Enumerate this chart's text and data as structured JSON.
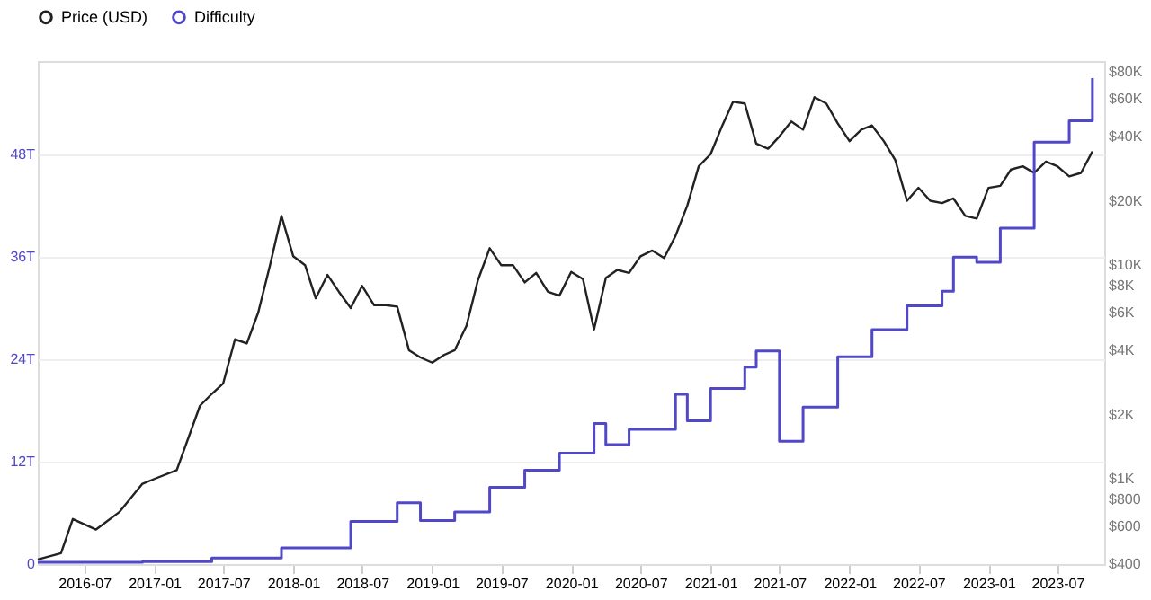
{
  "chart_data": {
    "type": "line",
    "legend": "top",
    "grid": "y",
    "log": "y2",
    "marker": "none",
    "line_style": "solid",
    "xlim": [
      "2016-03",
      "2023-11"
    ],
    "xticks": [
      "2016-07",
      "2017-01",
      "2017-07",
      "2018-01",
      "2018-07",
      "2019-01",
      "2019-07",
      "2020-01",
      "2020-07",
      "2021-01",
      "2021-07",
      "2022-01",
      "2022-07",
      "2023-01",
      "2023-07"
    ],
    "ylim": [
      0,
      59
    ],
    "yticks": [
      0,
      {
        "value": 12,
        "label": "12T"
      },
      {
        "value": 24,
        "label": "24T"
      },
      {
        "value": 36,
        "label": "36T"
      },
      {
        "value": 48,
        "label": "48T"
      }
    ],
    "y2lim": [
      400,
      90000
    ],
    "y2ticks": [
      {
        "value": 400,
        "label": "$400"
      },
      {
        "value": 600,
        "label": "$600"
      },
      {
        "value": 800,
        "label": "$800"
      },
      {
        "value": 1000,
        "label": "$1K"
      },
      {
        "value": 2000,
        "label": "$2K"
      },
      {
        "value": 4000,
        "label": "$4K"
      },
      {
        "value": 6000,
        "label": "$6K"
      },
      {
        "value": 8000,
        "label": "$8K"
      },
      {
        "value": 10000,
        "label": "$10K"
      },
      {
        "value": 20000,
        "label": "$20K"
      },
      {
        "value": 40000,
        "label": "$40K"
      },
      {
        "value": 60000,
        "label": "$60K"
      },
      {
        "value": 80000,
        "label": "$80K"
      }
    ],
    "series": [
      {
        "name": "Price (USD)",
        "color": "#222222",
        "axis": "y2",
        "x": [
          "2016-03",
          "2016-05",
          "2016-06",
          "2016-08",
          "2016-10",
          "2016-12",
          "2017-01",
          "2017-03",
          "2017-05",
          "2017-06",
          "2017-07",
          "2017-08",
          "2017-09",
          "2017-10",
          "2017-11",
          "2017-12",
          "2018-01",
          "2018-02",
          "2018-03",
          "2018-04",
          "2018-05",
          "2018-06",
          "2018-07",
          "2018-08",
          "2018-09",
          "2018-10",
          "2018-11",
          "2018-12",
          "2019-01",
          "2019-02",
          "2019-03",
          "2019-04",
          "2019-05",
          "2019-06",
          "2019-07",
          "2019-08",
          "2019-09",
          "2019-10",
          "2019-11",
          "2019-12",
          "2020-01",
          "2020-02",
          "2020-03",
          "2020-04",
          "2020-05",
          "2020-06",
          "2020-07",
          "2020-08",
          "2020-09",
          "2020-10",
          "2020-11",
          "2020-12",
          "2021-01",
          "2021-02",
          "2021-03",
          "2021-04",
          "2021-05",
          "2021-06",
          "2021-07",
          "2021-08",
          "2021-09",
          "2021-10",
          "2021-11",
          "2021-12",
          "2022-01",
          "2022-02",
          "2022-03",
          "2022-04",
          "2022-05",
          "2022-06",
          "2022-07",
          "2022-08",
          "2022-09",
          "2022-10",
          "2022-11",
          "2022-12",
          "2023-01",
          "2023-02",
          "2023-03",
          "2023-04",
          "2023-05",
          "2023-06",
          "2023-07",
          "2023-08",
          "2023-09",
          "2023-10"
        ],
        "values": [
          420,
          450,
          650,
          580,
          700,
          950,
          1000,
          1100,
          2200,
          2500,
          2800,
          4500,
          4300,
          6000,
          10000,
          17000,
          11000,
          10000,
          7000,
          9000,
          7500,
          6300,
          8000,
          6500,
          6500,
          6400,
          4000,
          3700,
          3500,
          3800,
          4000,
          5200,
          8500,
          12000,
          10000,
          10000,
          8300,
          9200,
          7500,
          7200,
          9300,
          8600,
          5000,
          8700,
          9500,
          9200,
          11000,
          11700,
          10800,
          13700,
          19000,
          29000,
          33000,
          45000,
          58000,
          57000,
          37000,
          35000,
          40000,
          47000,
          43000,
          61000,
          57000,
          46000,
          38000,
          43000,
          45000,
          38000,
          31000,
          20000,
          23000,
          20000,
          19500,
          20500,
          17000,
          16500,
          23000,
          23500,
          28000,
          29000,
          27000,
          30500,
          29000,
          26000,
          27000,
          34000
        ]
      },
      {
        "name": "Difficulty",
        "color": "#5148c8",
        "type": "step",
        "x": [
          "2016-03",
          "2016-12",
          "2017-06",
          "2017-12",
          "2018-06",
          "2018-10",
          "2018-12",
          "2019-03",
          "2019-06",
          "2019-09",
          "2019-12",
          "2020-03",
          "2020-04",
          "2020-06",
          "2020-10",
          "2020-11",
          "2021-01",
          "2021-04",
          "2021-05",
          "2021-07",
          "2021-09",
          "2021-12",
          "2022-03",
          "2022-06",
          "2022-09",
          "2022-10",
          "2022-12",
          "2023-02",
          "2023-05",
          "2023-08",
          "2023-10"
        ],
        "values": [
          0.2,
          0.3,
          0.7,
          1.9,
          5,
          7.2,
          5.1,
          6.1,
          9,
          11,
          13,
          16.5,
          14,
          15.8,
          19.9,
          16.8,
          20.6,
          23.1,
          25,
          14.4,
          18.4,
          24.3,
          27.5,
          30.3,
          32,
          36,
          35.4,
          39.4,
          49.5,
          52,
          57
        ]
      }
    ]
  }
}
